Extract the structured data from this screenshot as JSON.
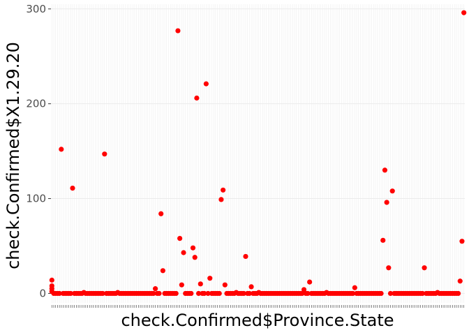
{
  "chart_data": {
    "type": "scatter",
    "xlabel": "check.Confirmed$Province.State",
    "ylabel": "check.Confirmed$X1.29.20",
    "ylim": [
      -10,
      305
    ],
    "y_ticks": [
      0,
      100,
      200,
      300
    ],
    "y_tick_labels": [
      "0",
      "100",
      "200",
      "300"
    ],
    "x_tick_labels_shown": false,
    "grid": true,
    "point_color": "#ff0000",
    "panel_color": "#ffffff",
    "grid_color": "#ebebeb",
    "x_category_count": 220,
    "series": [
      {
        "points": [
          {
            "x": 0,
            "y": 14
          },
          {
            "x": 0,
            "y": 8
          },
          {
            "x": 0,
            "y": 5
          },
          {
            "x": 0,
            "y": 2
          },
          {
            "x": 5,
            "y": 152
          },
          {
            "x": 11,
            "y": 111
          },
          {
            "x": 17,
            "y": 1
          },
          {
            "x": 28,
            "y": 147
          },
          {
            "x": 35,
            "y": 1
          },
          {
            "x": 55,
            "y": 5
          },
          {
            "x": 58,
            "y": 84
          },
          {
            "x": 59,
            "y": 24
          },
          {
            "x": 67,
            "y": 277
          },
          {
            "x": 68,
            "y": 58
          },
          {
            "x": 69,
            "y": 9
          },
          {
            "x": 70,
            "y": 43
          },
          {
            "x": 75,
            "y": 48
          },
          {
            "x": 76,
            "y": 38
          },
          {
            "x": 77,
            "y": 206
          },
          {
            "x": 79,
            "y": 10
          },
          {
            "x": 82,
            "y": 221
          },
          {
            "x": 84,
            "y": 16
          },
          {
            "x": 90,
            "y": 99
          },
          {
            "x": 91,
            "y": 109
          },
          {
            "x": 92,
            "y": 9
          },
          {
            "x": 98,
            "y": 1
          },
          {
            "x": 103,
            "y": 39
          },
          {
            "x": 106,
            "y": 7
          },
          {
            "x": 110,
            "y": 1
          },
          {
            "x": 134,
            "y": 4
          },
          {
            "x": 137,
            "y": 12
          },
          {
            "x": 146,
            "y": 1
          },
          {
            "x": 161,
            "y": 6
          },
          {
            "x": 176,
            "y": 56
          },
          {
            "x": 177,
            "y": 130
          },
          {
            "x": 178,
            "y": 96
          },
          {
            "x": 179,
            "y": 27
          },
          {
            "x": 181,
            "y": 108
          },
          {
            "x": 198,
            "y": 27
          },
          {
            "x": 205,
            "y": 1
          },
          {
            "x": 217,
            "y": 13
          },
          {
            "x": 218,
            "y": 55
          },
          {
            "x": 219,
            "y": 296
          }
        ]
      }
    ]
  }
}
